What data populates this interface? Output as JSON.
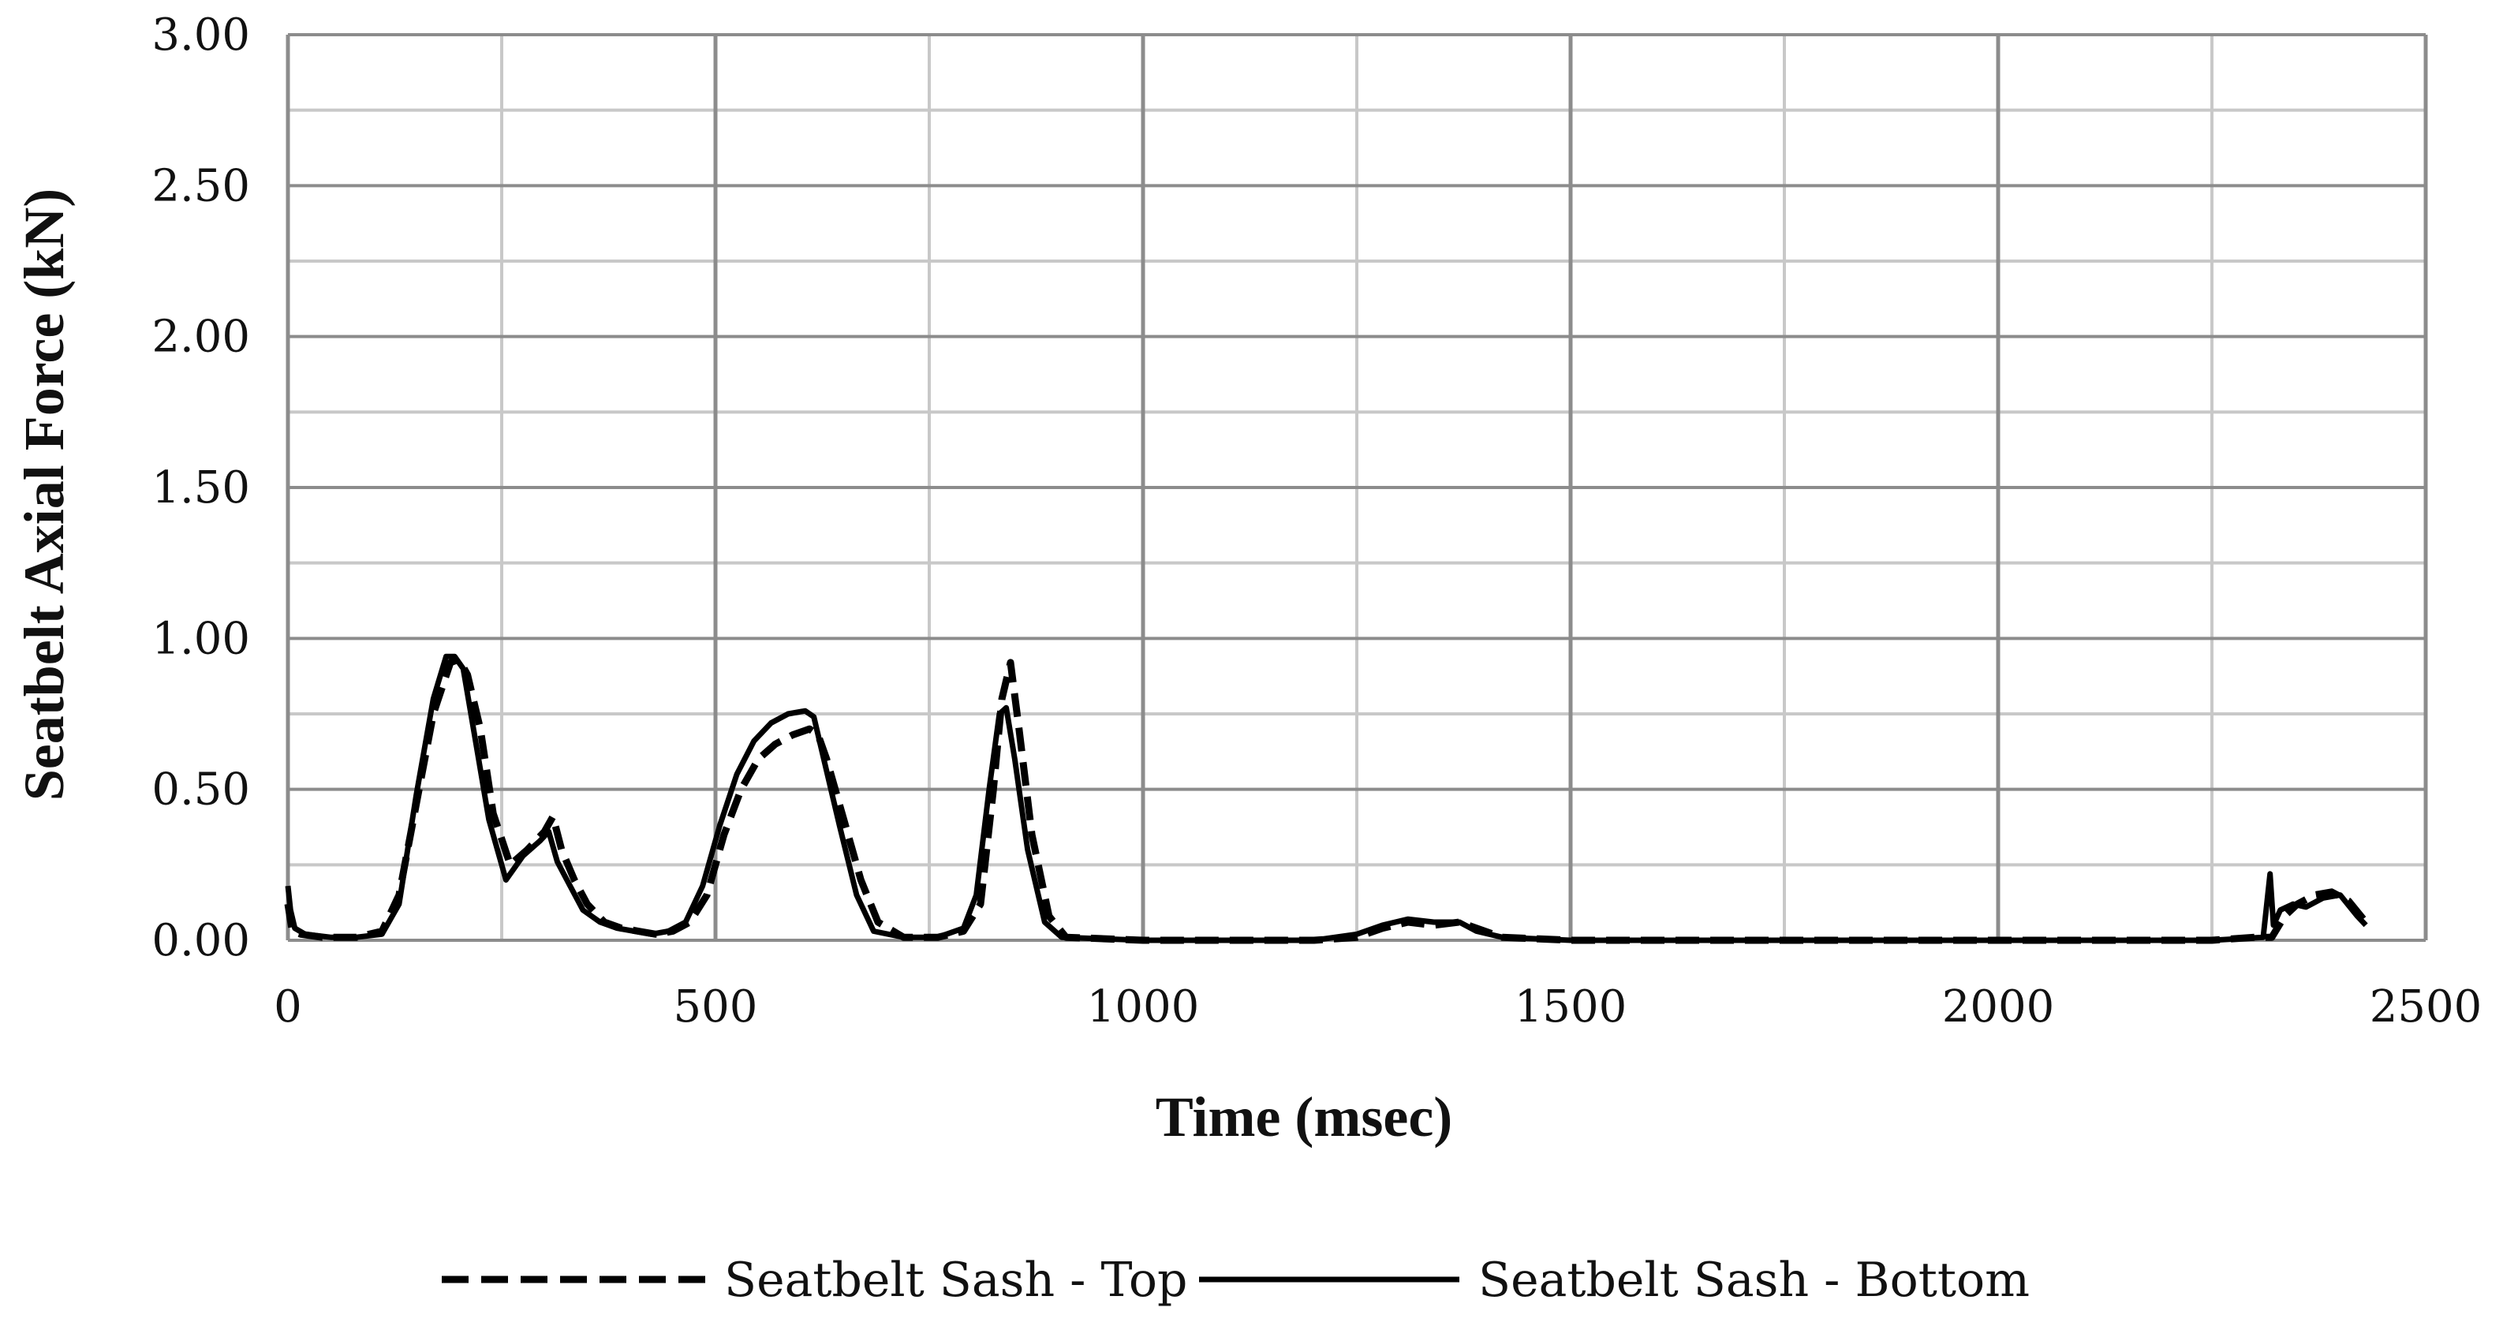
{
  "chart_data": {
    "type": "line",
    "title": "",
    "xlabel": "Time (msec)",
    "ylabel": "Seatbelt Axial Force (kN)",
    "xlim": [
      0,
      2500
    ],
    "ylim": [
      0,
      3.0
    ],
    "x_ticks": [
      "0",
      "500",
      "1000",
      "1500",
      "2000",
      "2500"
    ],
    "y_ticks": [
      "0.00",
      "0.50",
      "1.00",
      "1.50",
      "2.00",
      "2.50",
      "3.00"
    ],
    "x_minor_step": 250,
    "y_minor_step": 0.25,
    "grid": true,
    "legend_position": "bottom",
    "colors": {
      "line": "#000000",
      "grid_major": "#8c8c8c",
      "grid_minor": "#c8c8c8"
    },
    "series": [
      {
        "name": "Seatbelt Sash - Top",
        "style": "dashed",
        "x": [
          0,
          5,
          15,
          40,
          80,
          110,
          130,
          150,
          170,
          190,
          200,
          210,
          225,
          240,
          260,
          280,
          300,
          310,
          320,
          335,
          350,
          370,
          390,
          410,
          430,
          450,
          470,
          490,
          510,
          530,
          550,
          570,
          590,
          610,
          620,
          630,
          650,
          670,
          690,
          720,
          760,
          790,
          810,
          825,
          835,
          845,
          855,
          870,
          890,
          910,
          1000,
          1100,
          1200,
          1250,
          1280,
          1310,
          1340,
          1370,
          1390,
          1420,
          1500,
          1700,
          1900,
          2100,
          2250,
          2300,
          2320,
          2335,
          2350,
          2370,
          2390,
          2410,
          2430
        ],
        "y": [
          0.12,
          0.03,
          0.02,
          0.01,
          0.01,
          0.03,
          0.15,
          0.45,
          0.75,
          0.92,
          0.93,
          0.88,
          0.7,
          0.42,
          0.25,
          0.3,
          0.36,
          0.41,
          0.3,
          0.2,
          0.12,
          0.06,
          0.04,
          0.03,
          0.02,
          0.03,
          0.06,
          0.15,
          0.35,
          0.5,
          0.6,
          0.65,
          0.68,
          0.7,
          0.68,
          0.6,
          0.4,
          0.2,
          0.06,
          0.01,
          0.01,
          0.03,
          0.12,
          0.5,
          0.8,
          0.92,
          0.7,
          0.35,
          0.08,
          0.01,
          0.0,
          0.0,
          0.0,
          0.01,
          0.04,
          0.06,
          0.05,
          0.06,
          0.04,
          0.01,
          0.0,
          0.0,
          0.0,
          0.0,
          0.0,
          0.01,
          0.01,
          0.08,
          0.12,
          0.15,
          0.16,
          0.13,
          0.06
        ]
      },
      {
        "name": "Seatbelt Sash - Bottom",
        "style": "solid",
        "x": [
          0,
          3,
          8,
          20,
          50,
          80,
          110,
          130,
          150,
          170,
          185,
          195,
          205,
          220,
          235,
          255,
          275,
          295,
          305,
          315,
          330,
          345,
          365,
          385,
          405,
          425,
          445,
          465,
          485,
          505,
          525,
          545,
          565,
          585,
          605,
          615,
          625,
          645,
          665,
          685,
          720,
          760,
          790,
          805,
          820,
          832,
          840,
          850,
          865,
          885,
          905,
          1000,
          1100,
          1200,
          1250,
          1280,
          1310,
          1340,
          1370,
          1390,
          1420,
          1500,
          1700,
          1900,
          2100,
          2250,
          2310,
          2318,
          2322,
          2330,
          2345,
          2360,
          2380,
          2400,
          2420,
          2430
        ],
        "y": [
          0.18,
          0.1,
          0.04,
          0.02,
          0.01,
          0.01,
          0.02,
          0.12,
          0.48,
          0.8,
          0.94,
          0.94,
          0.9,
          0.65,
          0.4,
          0.2,
          0.28,
          0.33,
          0.36,
          0.26,
          0.18,
          0.1,
          0.06,
          0.04,
          0.03,
          0.02,
          0.03,
          0.06,
          0.18,
          0.38,
          0.55,
          0.66,
          0.72,
          0.75,
          0.76,
          0.74,
          0.62,
          0.38,
          0.15,
          0.03,
          0.01,
          0.01,
          0.04,
          0.15,
          0.5,
          0.75,
          0.77,
          0.6,
          0.3,
          0.06,
          0.01,
          0.0,
          0.0,
          0.0,
          0.02,
          0.05,
          0.07,
          0.06,
          0.06,
          0.03,
          0.01,
          0.0,
          0.0,
          0.0,
          0.0,
          0.0,
          0.01,
          0.22,
          0.05,
          0.1,
          0.12,
          0.11,
          0.14,
          0.15,
          0.08,
          0.05
        ]
      }
    ]
  }
}
